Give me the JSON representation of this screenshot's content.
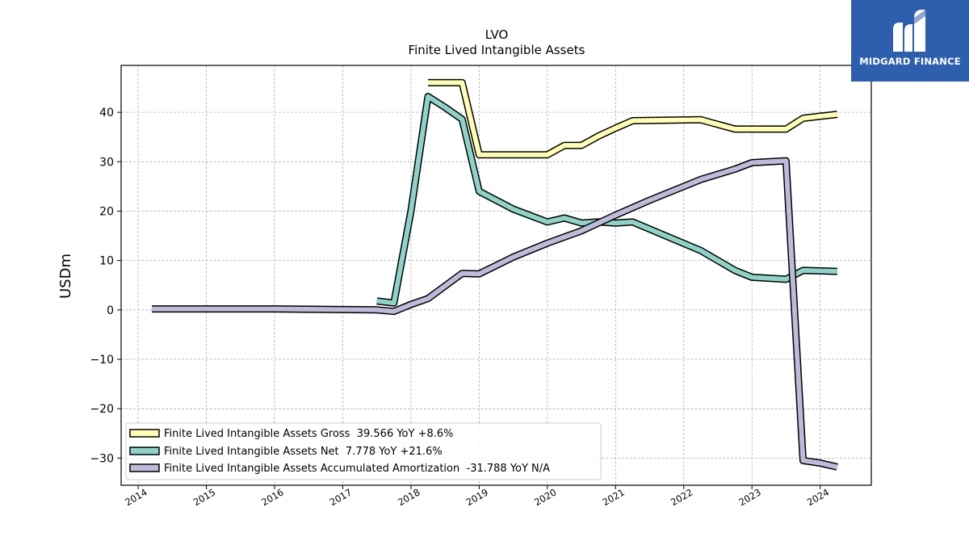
{
  "logo": {
    "text": "MIDGARD FINANCE",
    "icon": "midgard-mi-monogram-icon",
    "bg_color": "#2d5fae"
  },
  "chart_data": {
    "type": "line",
    "title": "LVO",
    "subtitle": "Finite Lived Intangible Assets",
    "xlabel": "",
    "ylabel": "USDm",
    "xlim": [
      2013.75,
      2024.75
    ],
    "ylim": [
      -35.5,
      49.5
    ],
    "x_ticks": [
      2014,
      2015,
      2016,
      2017,
      2018,
      2019,
      2020,
      2021,
      2022,
      2023,
      2024
    ],
    "y_ticks": [
      -30,
      -20,
      -10,
      0,
      10,
      20,
      30,
      40
    ],
    "y_tick_labels": [
      "−30",
      "−20",
      "−10",
      "0",
      "10",
      "20",
      "30",
      "40"
    ],
    "grid": true,
    "legend_position": "lower-left",
    "series": [
      {
        "name": "Finite Lived Intangible Assets Gross  39.566 YoY +8.6%",
        "color": "#ffffb3",
        "x": [
          2018.25,
          2018.75,
          2019.0,
          2019.5,
          2020.0,
          2020.25,
          2020.5,
          2020.75,
          2021.0,
          2021.25,
          2022.25,
          2022.75,
          2023.0,
          2023.5,
          2023.75,
          2024.0,
          2024.25
        ],
        "y": [
          46.0,
          46.0,
          31.4,
          31.4,
          31.4,
          33.3,
          33.3,
          35.2,
          36.8,
          38.3,
          38.5,
          36.6,
          36.6,
          36.6,
          38.8,
          39.2,
          39.6
        ]
      },
      {
        "name": "Finite Lived Intangible Assets Net  7.778 YoY +21.6%",
        "color": "#8dd3c7",
        "x": [
          2017.5,
          2017.75,
          2018.0,
          2018.25,
          2018.5,
          2018.75,
          2019.0,
          2019.5,
          2020.0,
          2020.25,
          2020.5,
          2020.75,
          2021.0,
          2021.25,
          2022.25,
          2022.75,
          2023.0,
          2023.5,
          2023.75,
          2024.0,
          2024.25
        ],
        "y": [
          1.8,
          1.4,
          20.0,
          43.2,
          41.0,
          38.6,
          24.0,
          20.4,
          17.8,
          18.6,
          17.6,
          17.8,
          17.6,
          17.8,
          12.0,
          8.0,
          6.6,
          6.2,
          8.0,
          7.9,
          7.8
        ]
      },
      {
        "name": "Finite Lived Intangible Assets Accumulated Amortization  -31.788 YoY N/A",
        "color": "#bebada",
        "x": [
          2014.2,
          2016.0,
          2017.5,
          2017.75,
          2018.0,
          2018.25,
          2018.75,
          2019.0,
          2019.5,
          2020.0,
          2020.5,
          2021.0,
          2021.5,
          2022.25,
          2022.75,
          2023.0,
          2023.5,
          2023.75,
          2024.0,
          2024.25
        ],
        "y": [
          0.2,
          0.2,
          0.0,
          -0.3,
          1.1,
          2.3,
          7.4,
          7.3,
          10.7,
          13.5,
          16.0,
          19.2,
          22.2,
          26.4,
          28.5,
          29.8,
          30.2,
          -30.5,
          -31.0,
          -31.8
        ]
      }
    ]
  }
}
